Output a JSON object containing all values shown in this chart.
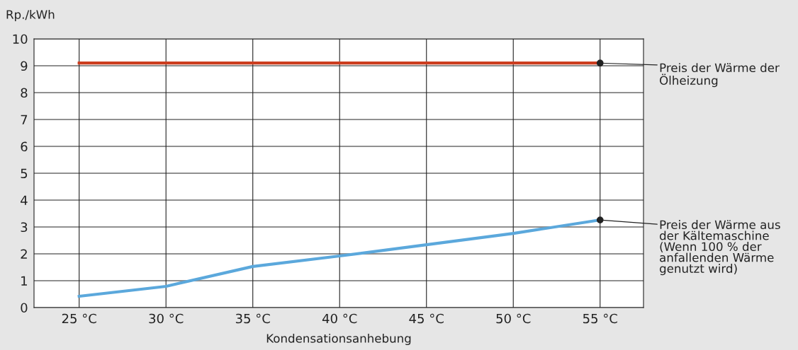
{
  "chart_data": {
    "type": "line",
    "ylabel": "Rp./kWh",
    "xlabel": "Kondensationsanhebung",
    "x": [
      25,
      30,
      35,
      40,
      45,
      50,
      55
    ],
    "series": [
      {
        "color": "#cc3d1f",
        "values": [
          9.1,
          9.1,
          9.1,
          9.1,
          9.1,
          9.1,
          9.1
        ]
      },
      {
        "color": "#5ba8dc",
        "values": [
          0.42,
          0.79,
          1.53,
          1.92,
          2.34,
          2.76,
          3.26
        ]
      }
    ],
    "xlim": [
      22.4,
      57.5
    ],
    "xticks": [
      {
        "value": 25,
        "label": "25 °C"
      },
      {
        "value": 30,
        "label": "30 °C"
      },
      {
        "value": 35,
        "label": "35 °C"
      },
      {
        "value": 40,
        "label": "40 °C"
      },
      {
        "value": 45,
        "label": "45 °C"
      },
      {
        "value": 50,
        "label": "50 °C"
      },
      {
        "value": 55,
        "label": "55 °C"
      }
    ],
    "ylim": [
      0,
      10
    ],
    "yticks": [
      0,
      1,
      2,
      3,
      4,
      5,
      6,
      7,
      8,
      9,
      10
    ],
    "grid": true,
    "marker": "none",
    "line_style": "solid",
    "annotations": [
      {
        "text": "Preis der Wärme der\nÖlheizung",
        "x": 55,
        "y": 9.1
      },
      {
        "text": "Preis der Wärme aus\nder Kältemaschine\n(Wenn 100 % der\nanfallenden Wärme\ngenutzt wird)",
        "x": 55,
        "y": 3.26
      }
    ]
  }
}
